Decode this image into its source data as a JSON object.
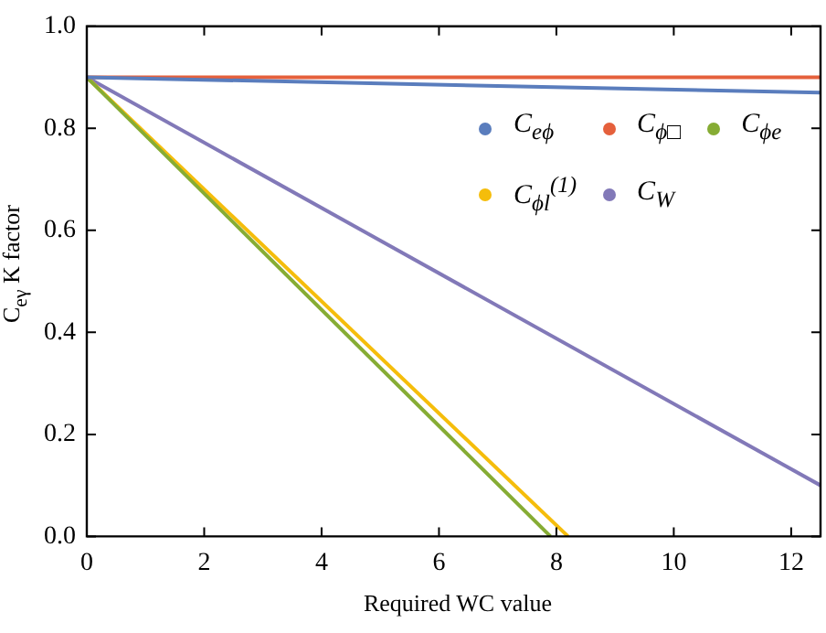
{
  "chart_data": {
    "type": "line",
    "xlabel": "Required WC value",
    "ylabel": "C$_{eγ}$ K factor",
    "xlim": [
      0,
      12.5
    ],
    "xticks": [
      0,
      2,
      4,
      6,
      8,
      10,
      12
    ],
    "ylim": [
      0,
      1
    ],
    "yticks": [
      {
        "value": 0,
        "label": "0.0"
      },
      {
        "value": 0.2,
        "label": "0.2"
      },
      {
        "value": 0.4,
        "label": "0.4"
      },
      {
        "value": 0.6,
        "label": "0.6"
      },
      {
        "value": 0.8,
        "label": "0.8"
      },
      {
        "value": 1,
        "label": "1.0"
      }
    ],
    "grid": false,
    "legend": "top right",
    "line_style": "solid",
    "series": [
      {
        "name": "C$_{eϕ}$",
        "color": "#5a7dbd",
        "x": [
          0,
          12.5
        ],
        "values": [
          0.9,
          0.87
        ]
      },
      {
        "name": "C$_{ϕ□}$",
        "color": "#e5603c",
        "x": [
          0,
          12.5
        ],
        "values": [
          0.9,
          0.9
        ]
      },
      {
        "name": "C$_{ϕe}$",
        "color": "#86ac34",
        "x": [
          0,
          7.9
        ],
        "values": [
          0.9,
          0
        ]
      },
      {
        "name": "C$_{ϕl}$$^{(1)}$",
        "color": "#f5bd0b",
        "x": [
          0,
          8.2
        ],
        "values": [
          0.9,
          0
        ]
      },
      {
        "name": "C$_{W}$",
        "color": "#8279b8",
        "x": [
          0,
          12.5
        ],
        "values": [
          0.9,
          0.1
        ]
      }
    ]
  }
}
